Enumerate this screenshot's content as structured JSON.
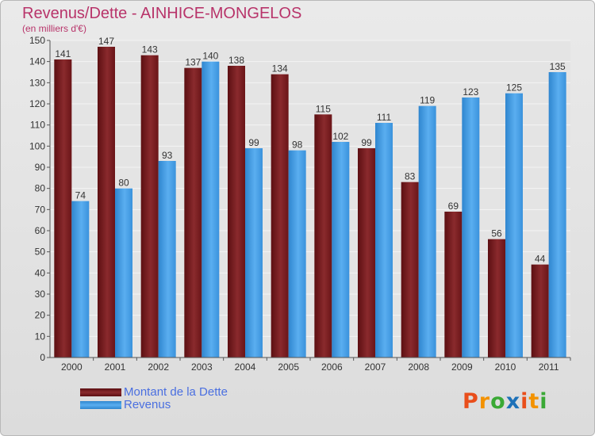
{
  "header": {
    "title": "Revenus/Dette - AINHICE-MONGELOS",
    "subtitle": "(en milliers d'€)"
  },
  "legend": [
    {
      "label": "Montant de la Dette",
      "color": "#7a1f23"
    },
    {
      "label": "Revenus",
      "color": "#4aa3e6"
    }
  ],
  "logo": {
    "text": "Proxiti",
    "colors": [
      "#e94e1b",
      "#f39200",
      "#3aa935",
      "#1d71b8",
      "#e94e1b",
      "#f39200",
      "#3aa935"
    ]
  },
  "chart_data": {
    "type": "bar",
    "title": "Revenus/Dette - AINHICE-MONGELOS",
    "subtitle": "(en milliers d'€)",
    "categories": [
      "2000",
      "2001",
      "2002",
      "2003",
      "2004",
      "2005",
      "2006",
      "2007",
      "2008",
      "2009",
      "2010",
      "2011"
    ],
    "series": [
      {
        "name": "Montant de la Dette",
        "color": "#7a1f23",
        "values": [
          141,
          147,
          143,
          137,
          138,
          134,
          115,
          99,
          83,
          69,
          56,
          44
        ]
      },
      {
        "name": "Revenus",
        "color": "#4aa3e6",
        "values": [
          74,
          80,
          93,
          140,
          99,
          98,
          102,
          111,
          119,
          123,
          125,
          135
        ]
      }
    ],
    "ylim": [
      0,
      150
    ],
    "ytick_step": 10,
    "grid": true,
    "data_labels": true,
    "legend_position": "bottom-left"
  }
}
